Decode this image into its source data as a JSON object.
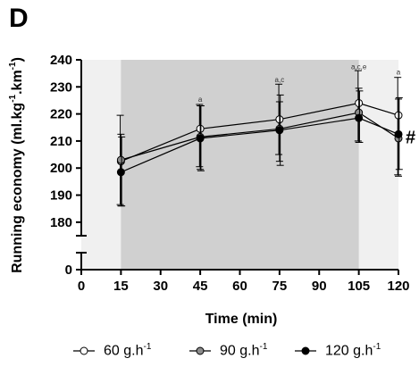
{
  "panel_label": "D",
  "chart_data": {
    "type": "line",
    "xlabel": "Time (min)",
    "ylabel_parts": [
      "Running economy (ml.kg",
      "-1",
      ".km",
      "-1",
      ")"
    ],
    "x": [
      15,
      45,
      75,
      105,
      120
    ],
    "x_ticks": [
      0,
      15,
      30,
      45,
      60,
      75,
      90,
      105,
      120
    ],
    "y_ticks_upper": [
      180,
      190,
      200,
      210,
      220,
      230,
      240
    ],
    "y_ticks_lower": [
      0
    ],
    "ylim_upper": [
      175,
      240
    ],
    "axis_break": true,
    "shaded_interval": [
      15,
      105
    ],
    "grid": false,
    "legend_placement": "bottom",
    "series": [
      {
        "name": "60 g.h",
        "unit_sup": "-1",
        "marker": "white",
        "values": [
          202.5,
          214.5,
          218,
          224,
          219.5
        ],
        "err_up": [
          17,
          9,
          13,
          12,
          14
        ],
        "err_down": [
          16,
          14,
          13,
          14,
          22
        ]
      },
      {
        "name": "90 g.h",
        "unit_sup": "-1",
        "marker": "grey",
        "values": [
          203,
          211.5,
          214.5,
          220.5,
          211
        ],
        "err_up": [
          9.5,
          11.5,
          10,
          9,
          14.5
        ],
        "err_down": [
          17,
          12,
          12,
          11,
          14
        ]
      },
      {
        "name": "120 g.h",
        "unit_sup": "-1",
        "marker": "black",
        "values": [
          198.5,
          211,
          214,
          218.5,
          212.5
        ],
        "err_up": [
          13,
          12,
          13,
          10,
          13.5
        ],
        "err_down": [
          12.5,
          12,
          13,
          9,
          13
        ]
      }
    ],
    "annotations": [
      {
        "x": 45,
        "y": 224.5,
        "text": "a"
      },
      {
        "x": 75,
        "y": 231.8,
        "text": "a,c"
      },
      {
        "x": 105,
        "y": 236.6,
        "text": "a,c,e"
      },
      {
        "x": 120,
        "y": 234.6,
        "text": "a"
      },
      {
        "x": 120,
        "y": 211.5,
        "text": "#",
        "style": "symbol"
      }
    ]
  }
}
